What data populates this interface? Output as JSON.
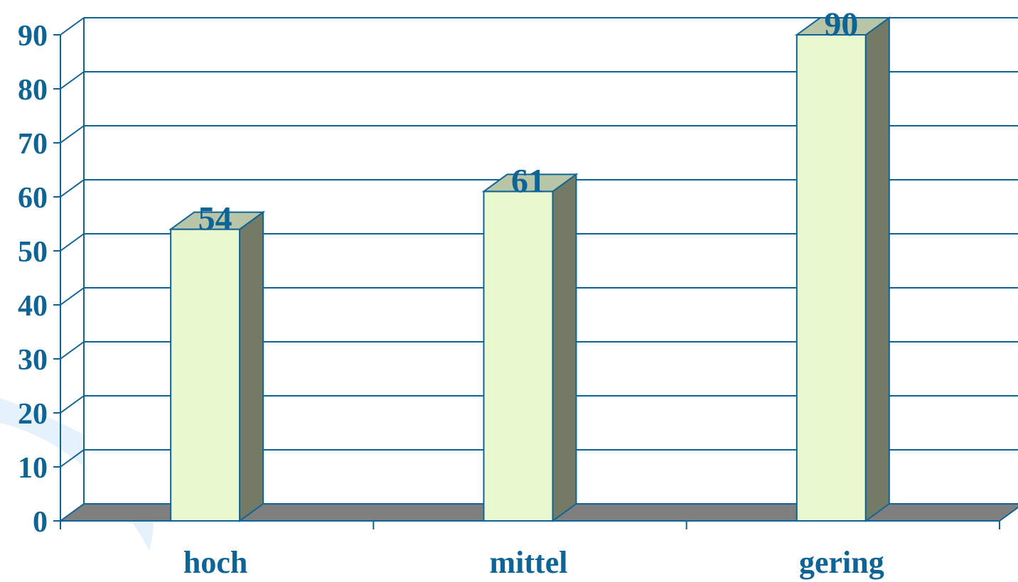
{
  "chart_data": {
    "type": "bar",
    "style": "3d",
    "title": "",
    "xlabel": "",
    "ylabel": "",
    "categories": [
      "hoch",
      "mittel",
      "gering"
    ],
    "values": [
      54,
      61,
      90
    ],
    "data_labels": [
      "54",
      "61",
      "90"
    ],
    "ylim": [
      0,
      90
    ],
    "yticks": [
      0,
      10,
      20,
      30,
      40,
      50,
      60,
      70,
      80,
      90
    ],
    "ytick_labels": [
      "0",
      "10",
      "20",
      "30",
      "40",
      "50",
      "60",
      "70",
      "80",
      "90"
    ],
    "grid": true,
    "legend": "none"
  },
  "colors": {
    "text": "#0f6496",
    "axis": "#0f6496",
    "gridline": "#0f6496",
    "bar_front": "#eaf8cf",
    "bar_top": "#b9c5a7",
    "bar_side": "#737b67",
    "floor": "#7f7f7f",
    "watermark": "#e6f2fb"
  }
}
